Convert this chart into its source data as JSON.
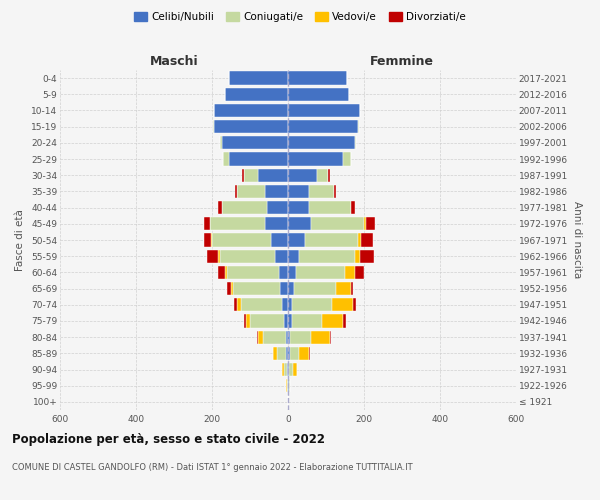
{
  "age_groups": [
    "100+",
    "95-99",
    "90-94",
    "85-89",
    "80-84",
    "75-79",
    "70-74",
    "65-69",
    "60-64",
    "55-59",
    "50-54",
    "45-49",
    "40-44",
    "35-39",
    "30-34",
    "25-29",
    "20-24",
    "15-19",
    "10-14",
    "5-9",
    "0-4"
  ],
  "birth_years": [
    "≤ 1921",
    "1922-1926",
    "1927-1931",
    "1932-1936",
    "1937-1941",
    "1942-1946",
    "1947-1951",
    "1952-1956",
    "1957-1961",
    "1962-1966",
    "1967-1971",
    "1972-1976",
    "1977-1981",
    "1982-1986",
    "1987-1991",
    "1992-1996",
    "1997-2001",
    "2002-2006",
    "2007-2011",
    "2012-2016",
    "2017-2021"
  ],
  "male": {
    "celibi": [
      0,
      1,
      2,
      5,
      5,
      10,
      15,
      20,
      25,
      35,
      45,
      60,
      55,
      60,
      80,
      155,
      175,
      195,
      195,
      165,
      155
    ],
    "coniugati": [
      0,
      2,
      8,
      25,
      60,
      90,
      110,
      125,
      135,
      145,
      155,
      145,
      120,
      75,
      35,
      15,
      5,
      2,
      0,
      0,
      0
    ],
    "vedovi": [
      0,
      1,
      5,
      10,
      15,
      10,
      8,
      5,
      5,
      3,
      2,
      0,
      0,
      0,
      0,
      0,
      0,
      0,
      0,
      0,
      0
    ],
    "divorziati": [
      0,
      0,
      0,
      0,
      2,
      5,
      10,
      10,
      20,
      30,
      20,
      15,
      10,
      5,
      5,
      2,
      0,
      0,
      0,
      0,
      0
    ]
  },
  "female": {
    "nubili": [
      0,
      2,
      3,
      5,
      5,
      10,
      10,
      15,
      20,
      30,
      45,
      60,
      55,
      55,
      75,
      145,
      175,
      185,
      190,
      160,
      155
    ],
    "coniugate": [
      0,
      2,
      10,
      25,
      55,
      80,
      105,
      110,
      130,
      145,
      140,
      140,
      110,
      65,
      30,
      20,
      5,
      2,
      0,
      0,
      0
    ],
    "vedove": [
      0,
      2,
      10,
      25,
      50,
      55,
      55,
      40,
      25,
      15,
      8,
      5,
      2,
      2,
      0,
      0,
      0,
      0,
      0,
      0,
      0
    ],
    "divorziate": [
      0,
      0,
      0,
      2,
      2,
      8,
      10,
      5,
      25,
      35,
      30,
      25,
      10,
      5,
      5,
      2,
      0,
      0,
      0,
      0,
      0
    ]
  },
  "colors": {
    "celibi": "#4472c4",
    "coniugati": "#c5d9a0",
    "vedovi": "#ffc000",
    "divorziati": "#c00000"
  },
  "xlim": 600,
  "title": "Popolazione per età, sesso e stato civile - 2022",
  "subtitle": "COMUNE DI CASTEL GANDOLFO (RM) - Dati ISTAT 1° gennaio 2022 - Elaborazione TUTTITALIA.IT",
  "ylabel_left": "Fasce di età",
  "ylabel_right": "Anni di nascita",
  "xlabel_left": "Maschi",
  "xlabel_right": "Femmine",
  "bg_color": "#f5f5f5",
  "grid_color": "#d0d0d0"
}
